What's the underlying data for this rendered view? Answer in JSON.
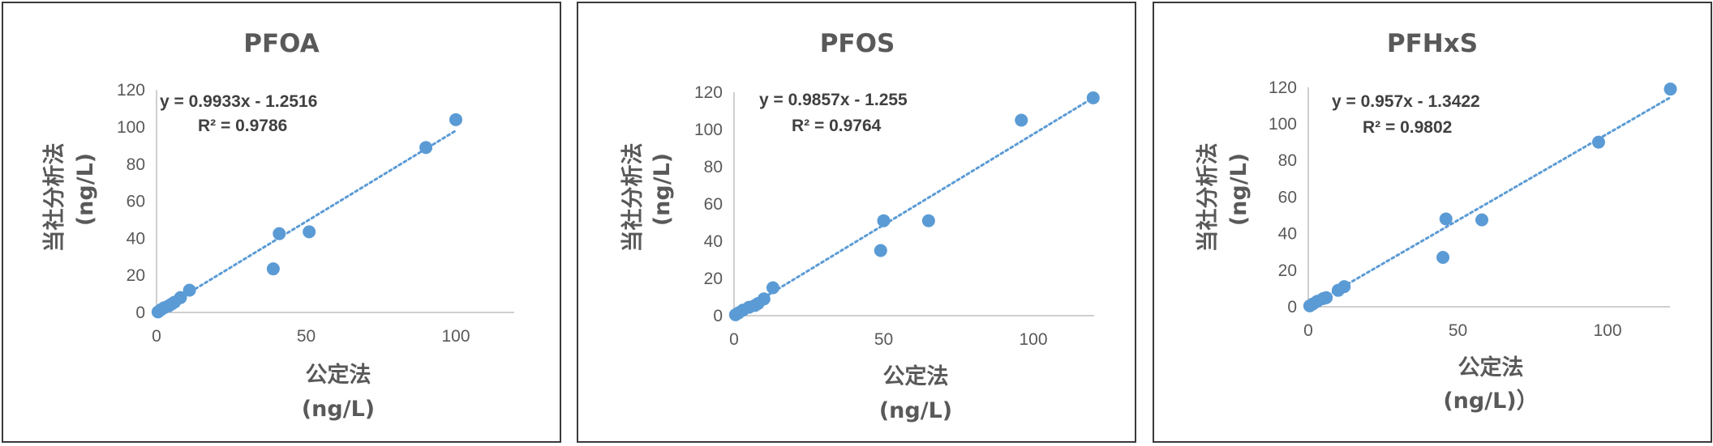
{
  "chart_data": [
    {
      "type": "scatter",
      "title": "PFOA",
      "xlabel": [
        "公定法",
        "(ng/L)"
      ],
      "ylabel": [
        "当社分析法",
        "(ng/L)"
      ],
      "xlim": [
        0,
        120
      ],
      "ylim": [
        0,
        120
      ],
      "xticks": [
        0,
        50,
        100
      ],
      "yticks": [
        0,
        20,
        40,
        60,
        80,
        100,
        120
      ],
      "points": [
        [
          0.5,
          0.3
        ],
        [
          1.5,
          1.5
        ],
        [
          2.5,
          2.5
        ],
        [
          4,
          3.5
        ],
        [
          5,
          4.5
        ],
        [
          6,
          5.5
        ],
        [
          8,
          8
        ],
        [
          11,
          12
        ],
        [
          39,
          23.5
        ],
        [
          41,
          42.5
        ],
        [
          51,
          43.5
        ],
        [
          90,
          89
        ],
        [
          100,
          104
        ]
      ],
      "trendline": {
        "slope": 0.9933,
        "intercept": -1.2516,
        "x_range": [
          0,
          100
        ]
      },
      "equation": "y = 0.9933x - 1.2516",
      "r2": "R² = 0.9786",
      "color": "#5b9bd5"
    },
    {
      "type": "scatter",
      "title": "PFOS",
      "xlabel": [
        "公定法",
        "(ng/L)"
      ],
      "ylabel": [
        "当社分析法",
        "(ng/L)"
      ],
      "xlim": [
        0,
        120
      ],
      "ylim": [
        0,
        120
      ],
      "xticks": [
        0,
        50,
        100
      ],
      "yticks": [
        0,
        20,
        40,
        60,
        80,
        100,
        120
      ],
      "points": [
        [
          0.5,
          0.5
        ],
        [
          1.5,
          1.5
        ],
        [
          3,
          3
        ],
        [
          5,
          4.5
        ],
        [
          7,
          5.5
        ],
        [
          8,
          6.5
        ],
        [
          10,
          9
        ],
        [
          13,
          15
        ],
        [
          49,
          35
        ],
        [
          50,
          51
        ],
        [
          65,
          51
        ],
        [
          96,
          105
        ],
        [
          120,
          117
        ]
      ],
      "trendline": {
        "slope": 0.9857,
        "intercept": -1.255,
        "x_range": [
          0,
          120
        ]
      },
      "equation": "y = 0.9857x - 1.255",
      "r2": "R² = 0.9764",
      "color": "#5b9bd5"
    },
    {
      "type": "scatter",
      "title": "PFHxS",
      "xlabel": [
        "公定法",
        "(ng/L)）"
      ],
      "ylabel": [
        "当社分析法",
        "(ng/L)"
      ],
      "xlim": [
        0,
        120
      ],
      "ylim": [
        0,
        120
      ],
      "xticks": [
        0,
        50,
        100
      ],
      "yticks": [
        0,
        20,
        40,
        60,
        80,
        100,
        120
      ],
      "points": [
        [
          0.5,
          0.5
        ],
        [
          1.5,
          1.5
        ],
        [
          3,
          3
        ],
        [
          5,
          4.5
        ],
        [
          6,
          5
        ],
        [
          10,
          9
        ],
        [
          12,
          11
        ],
        [
          45,
          27
        ],
        [
          46,
          48
        ],
        [
          58,
          47.5
        ],
        [
          97,
          90
        ],
        [
          121,
          119
        ]
      ],
      "trendline": {
        "slope": 0.957,
        "intercept": -1.3422,
        "x_range": [
          0,
          121
        ]
      },
      "equation": "y = 0.957x - 1.3422",
      "r2": "R² = 0.9802",
      "color": "#5b9bd5"
    }
  ]
}
